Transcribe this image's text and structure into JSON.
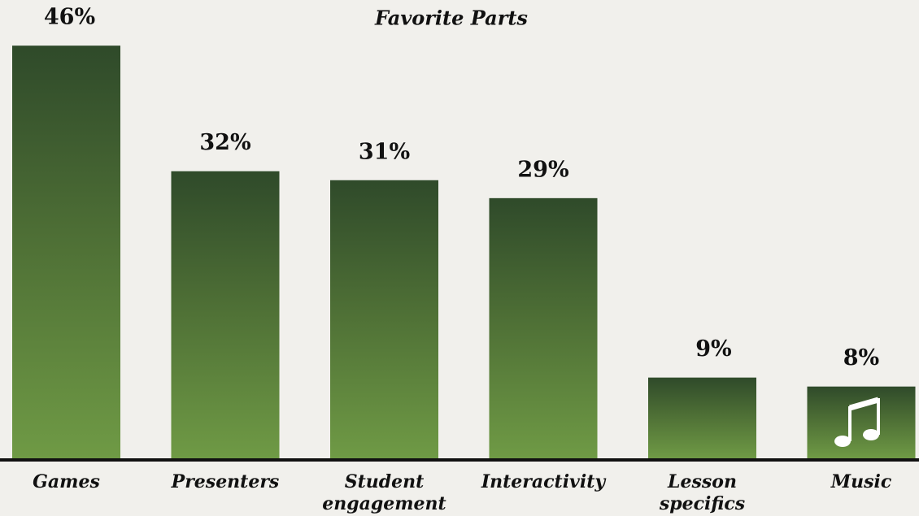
{
  "chart_data": {
    "type": "bar",
    "title": "Favorite Parts",
    "categories": [
      "Games",
      "Presenters",
      "Student engagement",
      "Interactivity",
      "Lesson specifics",
      "Music"
    ],
    "values": [
      46,
      32,
      31,
      29,
      9,
      8
    ],
    "value_labels": [
      "46%",
      "32%",
      "31%",
      "29%",
      "9%",
      "8%"
    ],
    "color": "#5b7d3c",
    "ylim": [
      0,
      50
    ]
  }
}
